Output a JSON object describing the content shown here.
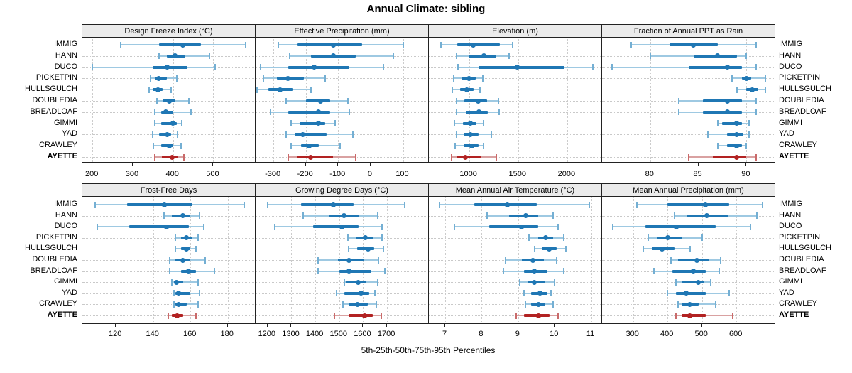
{
  "title": "Annual Climate: sibling",
  "caption": "5th-25th-50th-75th-95th Percentiles",
  "sites": [
    "IMMIG",
    "HANN",
    "DUCO",
    "PICKETPIN",
    "HULLSGULCH",
    "DOUBLEDIA",
    "BREADLOAF",
    "GIMMI",
    "YAD",
    "CRAWLEY",
    "AYETTE"
  ],
  "highlight_site": "AYETTE",
  "percentiles": [
    5,
    25,
    50,
    75,
    95
  ],
  "colors": {
    "blue_main": "#1f77b4",
    "blue_light": "#9ec9e2",
    "blue_cap": "#74afd3",
    "red_main": "#b22222",
    "red_light": "#d9a1a1",
    "red_cap": "#c96a6a",
    "grid": "#cccccc",
    "header_bg": "#ebebeb",
    "panel_border": "#222222"
  },
  "chart_data": [
    {
      "type": "dot-whisker",
      "title": "Design Freeze Index (°C)",
      "xlim": [
        175,
        605
      ],
      "ticks": [
        200,
        300,
        400,
        500
      ],
      "percentile_labels": [
        "5th",
        "25th",
        "50th",
        "75th",
        "95th"
      ],
      "series": [
        {
          "name": "IMMIG",
          "values": [
            270,
            365,
            425,
            470,
            580
          ]
        },
        {
          "name": "HANN",
          "values": [
            365,
            385,
            405,
            430,
            490
          ]
        },
        {
          "name": "DUCO",
          "values": [
            200,
            350,
            385,
            435,
            505
          ]
        },
        {
          "name": "PICKETPIN",
          "values": [
            345,
            355,
            365,
            385,
            410
          ]
        },
        {
          "name": "HULLSGULCH",
          "values": [
            340,
            350,
            362,
            375,
            395
          ]
        },
        {
          "name": "DOUBLEDIA",
          "values": [
            360,
            375,
            390,
            405,
            440
          ]
        },
        {
          "name": "BREADLOAF",
          "values": [
            355,
            370,
            382,
            400,
            445
          ]
        },
        {
          "name": "GIMMI",
          "values": [
            355,
            370,
            400,
            410,
            422
          ]
        },
        {
          "name": "YAD",
          "values": [
            350,
            366,
            385,
            395,
            412
          ]
        },
        {
          "name": "CRAWLEY",
          "values": [
            352,
            370,
            390,
            400,
            420
          ]
        },
        {
          "name": "AYETTE",
          "values": [
            355,
            372,
            398,
            412,
            427
          ]
        }
      ]
    },
    {
      "type": "dot-whisker",
      "title": "Effective Precipitation (mm)",
      "xlim": [
        -355,
        180
      ],
      "ticks": [
        -300,
        -200,
        -100,
        0,
        100
      ],
      "percentile_labels": [
        "5th",
        "25th",
        "50th",
        "75th",
        "95th"
      ],
      "series": [
        {
          "name": "IMMIG",
          "values": [
            -285,
            -225,
            -115,
            -25,
            100
          ]
        },
        {
          "name": "HANN",
          "values": [
            -250,
            -185,
            -115,
            -45,
            70
          ]
        },
        {
          "name": "DUCO",
          "values": [
            -340,
            -255,
            -175,
            -65,
            40
          ]
        },
        {
          "name": "PICKETPIN",
          "values": [
            -330,
            -290,
            -255,
            -205,
            -140
          ]
        },
        {
          "name": "HULLSGULCH",
          "values": [
            -350,
            -315,
            -280,
            -240,
            -185
          ]
        },
        {
          "name": "DOUBLEDIA",
          "values": [
            -260,
            -200,
            -155,
            -125,
            -70
          ]
        },
        {
          "name": "BREADLOAF",
          "values": [
            -310,
            -255,
            -160,
            -125,
            -65
          ]
        },
        {
          "name": "GIMMI",
          "values": [
            -245,
            -220,
            -160,
            -140,
            -110
          ]
        },
        {
          "name": "YAD",
          "values": [
            -260,
            -235,
            -210,
            -135,
            -55
          ]
        },
        {
          "name": "CRAWLEY",
          "values": [
            -245,
            -215,
            -190,
            -160,
            -95
          ]
        },
        {
          "name": "AYETTE",
          "values": [
            -255,
            -225,
            -185,
            -115,
            -45
          ]
        }
      ]
    },
    {
      "type": "dot-whisker",
      "title": "Elevation (m)",
      "xlim": [
        590,
        2355
      ],
      "ticks": [
        1000,
        1500,
        2000
      ],
      "percentile_labels": [
        "5th",
        "25th",
        "50th",
        "75th",
        "95th"
      ],
      "series": [
        {
          "name": "IMMIG",
          "values": [
            710,
            880,
            1040,
            1310,
            1445
          ]
        },
        {
          "name": "HANN",
          "values": [
            875,
            995,
            1150,
            1275,
            1405
          ]
        },
        {
          "name": "DUCO",
          "values": [
            885,
            1095,
            1490,
            1975,
            2260
          ]
        },
        {
          "name": "PICKETPIN",
          "values": [
            845,
            920,
            1000,
            1070,
            1140
          ]
        },
        {
          "name": "HULLSGULCH",
          "values": [
            830,
            905,
            980,
            1045,
            1110
          ]
        },
        {
          "name": "DOUBLEDIA",
          "values": [
            870,
            955,
            1090,
            1185,
            1300
          ]
        },
        {
          "name": "BREADLOAF",
          "values": [
            875,
            965,
            1100,
            1190,
            1305
          ]
        },
        {
          "name": "GIMMI",
          "values": [
            850,
            935,
            1010,
            1075,
            1150
          ]
        },
        {
          "name": "YAD",
          "values": [
            870,
            945,
            1010,
            1095,
            1225
          ]
        },
        {
          "name": "CRAWLEY",
          "values": [
            860,
            945,
            1030,
            1100,
            1150
          ]
        },
        {
          "name": "AYETTE",
          "values": [
            820,
            870,
            960,
            1120,
            1280
          ]
        }
      ]
    },
    {
      "type": "dot-whisker",
      "title": "Fraction of Annual PPT as Rain",
      "xlim": [
        75,
        93
      ],
      "ticks": [
        80,
        85,
        90
      ],
      "percentile_labels": [
        "5th",
        "25th",
        "50th",
        "75th",
        "95th"
      ],
      "series": [
        {
          "name": "IMMIG",
          "values": [
            78,
            82,
            84.5,
            87,
            91
          ]
        },
        {
          "name": "HANN",
          "values": [
            80,
            84.5,
            87,
            89,
            90
          ]
        },
        {
          "name": "DUCO",
          "values": [
            76,
            84,
            88,
            89.5,
            91
          ]
        },
        {
          "name": "PICKETPIN",
          "values": [
            88.5,
            89.5,
            90,
            90.5,
            92
          ]
        },
        {
          "name": "HULLSGULCH",
          "values": [
            89,
            90,
            90.6,
            91.2,
            92
          ]
        },
        {
          "name": "DOUBLEDIA",
          "values": [
            83,
            85.5,
            88,
            89.5,
            91
          ]
        },
        {
          "name": "BREADLOAF",
          "values": [
            83,
            85.5,
            88,
            89.5,
            91
          ]
        },
        {
          "name": "GIMMI",
          "values": [
            87,
            87.5,
            89,
            89.5,
            90.3
          ]
        },
        {
          "name": "YAD",
          "values": [
            86,
            88,
            89,
            89.7,
            90.3
          ]
        },
        {
          "name": "CRAWLEY",
          "values": [
            87,
            88,
            89,
            89.5,
            90
          ]
        },
        {
          "name": "AYETTE",
          "values": [
            84,
            86.5,
            89,
            90,
            91
          ]
        }
      ]
    },
    {
      "type": "dot-whisker",
      "title": "Frost-Free Days",
      "xlim": [
        102,
        195
      ],
      "ticks": [
        120,
        140,
        160,
        180
      ],
      "percentile_labels": [
        "5th",
        "25th",
        "50th",
        "75th",
        "95th"
      ],
      "series": [
        {
          "name": "IMMIG",
          "values": [
            109,
            126,
            146,
            161,
            189
          ]
        },
        {
          "name": "HANN",
          "values": [
            146,
            150,
            156,
            160,
            165
          ]
        },
        {
          "name": "DUCO",
          "values": [
            110,
            127,
            147,
            159,
            167
          ]
        },
        {
          "name": "PICKETPIN",
          "values": [
            152,
            155,
            158,
            161,
            164
          ]
        },
        {
          "name": "HULLSGULCH",
          "values": [
            152,
            155,
            158,
            160,
            163
          ]
        },
        {
          "name": "DOUBLEDIA",
          "values": [
            149,
            152,
            156,
            160,
            168
          ]
        },
        {
          "name": "BREADLOAF",
          "values": [
            149,
            155,
            159,
            163,
            173
          ]
        },
        {
          "name": "GIMMI",
          "values": [
            150,
            151,
            152.5,
            156,
            164
          ]
        },
        {
          "name": "YAD",
          "values": [
            151,
            152,
            153.5,
            160,
            165
          ]
        },
        {
          "name": "CRAWLEY",
          "values": [
            151,
            152,
            153.5,
            158,
            164
          ]
        },
        {
          "name": "AYETTE",
          "values": [
            148,
            150,
            153,
            156,
            163
          ]
        }
      ]
    },
    {
      "type": "dot-whisker",
      "title": "Growing Degree Days (°C)",
      "xlim": [
        1150,
        1875
      ],
      "ticks": [
        1200,
        1300,
        1400,
        1500,
        1600,
        1700
      ],
      "percentile_labels": [
        "5th",
        "25th",
        "50th",
        "75th",
        "95th"
      ],
      "series": [
        {
          "name": "IMMIG",
          "values": [
            1200,
            1340,
            1475,
            1560,
            1775
          ]
        },
        {
          "name": "HANN",
          "values": [
            1350,
            1455,
            1520,
            1580,
            1660
          ]
        },
        {
          "name": "DUCO",
          "values": [
            1230,
            1390,
            1510,
            1580,
            1680
          ]
        },
        {
          "name": "PICKETPIN",
          "values": [
            1535,
            1570,
            1610,
            1640,
            1680
          ]
        },
        {
          "name": "HULLSGULCH",
          "values": [
            1540,
            1575,
            1620,
            1645,
            1685
          ]
        },
        {
          "name": "DOUBLEDIA",
          "values": [
            1410,
            1495,
            1540,
            1605,
            1665
          ]
        },
        {
          "name": "BREADLOAF",
          "values": [
            1410,
            1500,
            1540,
            1635,
            1690
          ]
        },
        {
          "name": "GIMMI",
          "values": [
            1520,
            1530,
            1580,
            1610,
            1660
          ]
        },
        {
          "name": "YAD",
          "values": [
            1490,
            1520,
            1590,
            1625,
            1650
          ]
        },
        {
          "name": "CRAWLEY",
          "values": [
            1515,
            1540,
            1575,
            1620,
            1655
          ]
        },
        {
          "name": "AYETTE",
          "values": [
            1480,
            1540,
            1605,
            1640,
            1675
          ]
        }
      ]
    },
    {
      "type": "dot-whisker",
      "title": "Mean Annual Air Temperature (°C)",
      "xlim": [
        6.55,
        11.3
      ],
      "ticks": [
        7,
        8,
        9,
        10,
        11
      ],
      "percentile_labels": [
        "5th",
        "25th",
        "50th",
        "75th",
        "95th"
      ],
      "series": [
        {
          "name": "IMMIG",
          "values": [
            6.85,
            7.8,
            8.7,
            9.5,
            10.95
          ]
        },
        {
          "name": "HANN",
          "values": [
            8.15,
            8.75,
            9.2,
            9.55,
            9.95
          ]
        },
        {
          "name": "DUCO",
          "values": [
            7.25,
            8.2,
            9.1,
            9.55,
            10.1
          ]
        },
        {
          "name": "PICKETPIN",
          "values": [
            9.3,
            9.55,
            9.75,
            9.95,
            10.25
          ]
        },
        {
          "name": "HULLSGULCH",
          "values": [
            9.45,
            9.65,
            9.85,
            10.05,
            10.3
          ]
        },
        {
          "name": "DOUBLEDIA",
          "values": [
            8.65,
            9.1,
            9.4,
            9.7,
            10.05
          ]
        },
        {
          "name": "BREADLOAF",
          "values": [
            8.6,
            9.15,
            9.45,
            9.8,
            10.25
          ]
        },
        {
          "name": "GIMMI",
          "values": [
            9.05,
            9.25,
            9.45,
            9.75,
            10.0
          ]
        },
        {
          "name": "YAD",
          "values": [
            9.15,
            9.35,
            9.6,
            9.8,
            9.9
          ]
        },
        {
          "name": "CRAWLEY",
          "values": [
            9.2,
            9.35,
            9.55,
            9.75,
            9.95
          ]
        },
        {
          "name": "AYETTE",
          "values": [
            8.95,
            9.15,
            9.55,
            9.85,
            10.1
          ]
        }
      ]
    },
    {
      "type": "dot-whisker",
      "title": "Mean Annual Precipitation (mm)",
      "xlim": [
        210,
        713
      ],
      "ticks": [
        300,
        400,
        500,
        600
      ],
      "percentile_labels": [
        "5th",
        "25th",
        "50th",
        "75th",
        "95th"
      ],
      "series": [
        {
          "name": "IMMIG",
          "values": [
            310,
            400,
            510,
            580,
            675
          ]
        },
        {
          "name": "HANN",
          "values": [
            420,
            455,
            515,
            575,
            660
          ]
        },
        {
          "name": "DUCO",
          "values": [
            240,
            335,
            425,
            540,
            640
          ]
        },
        {
          "name": "PICKETPIN",
          "values": [
            345,
            370,
            400,
            440,
            500
          ]
        },
        {
          "name": "HULLSGULCH",
          "values": [
            330,
            355,
            385,
            420,
            465
          ]
        },
        {
          "name": "DOUBLEDIA",
          "values": [
            410,
            430,
            485,
            520,
            555
          ]
        },
        {
          "name": "BREADLOAF",
          "values": [
            360,
            415,
            475,
            510,
            550
          ]
        },
        {
          "name": "GIMMI",
          "values": [
            425,
            440,
            490,
            505,
            525
          ]
        },
        {
          "name": "YAD",
          "values": [
            400,
            425,
            455,
            510,
            580
          ]
        },
        {
          "name": "CRAWLEY",
          "values": [
            430,
            440,
            465,
            490,
            540
          ]
        },
        {
          "name": "AYETTE",
          "values": [
            425,
            440,
            465,
            510,
            590
          ]
        }
      ]
    }
  ]
}
